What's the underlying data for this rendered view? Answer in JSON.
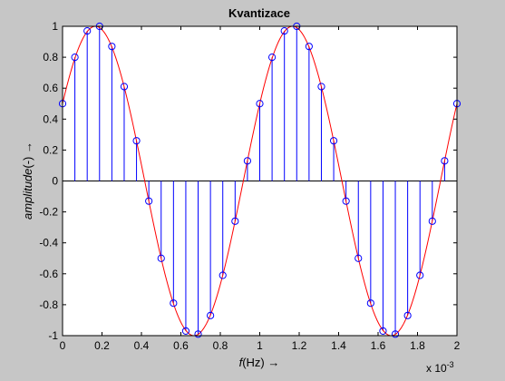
{
  "chart_data": {
    "type": "stem",
    "title": "Kvantizace",
    "xlabel": "f(Hz) →",
    "xlabel_parts": {
      "italic": "f",
      "rest": "(Hz) →"
    },
    "ylabel": "amplitude(-) →",
    "ylabel_parts": {
      "italic": "amplitude",
      "rest": "(-) →"
    },
    "x_multiplier": "x 10",
    "x_multiplier_exp": "-3",
    "xlim": [
      0,
      2
    ],
    "ylim": [
      -1,
      1
    ],
    "grid": false,
    "xticks": [
      0,
      0.2,
      0.4,
      0.6,
      0.8,
      1,
      1.2,
      1.4,
      1.6,
      1.8,
      2
    ],
    "xtick_labels": [
      "0",
      "0.2",
      "0.4",
      "0.6",
      "0.8",
      "1",
      "1.2",
      "1.4",
      "1.6",
      "1.8",
      "2"
    ],
    "yticks": [
      -1,
      -0.8,
      -0.6,
      -0.4,
      -0.2,
      0,
      0.2,
      0.4,
      0.6,
      0.8,
      1
    ],
    "ytick_labels": [
      "-1",
      "-0.8",
      "-0.6",
      "-0.4",
      "-0.2",
      "0",
      "0.2",
      "0.4",
      "0.6",
      "0.8",
      "1"
    ],
    "series": [
      {
        "kind": "line",
        "color": "#ff0000",
        "amplitude": 1,
        "frequency": 1,
        "phase_deg": 30,
        "x_range": [
          0,
          2
        ]
      },
      {
        "kind": "stem",
        "color": "#0000ff",
        "marker": "circle",
        "x": [
          0,
          0.0625,
          0.125,
          0.1875,
          0.25,
          0.3125,
          0.375,
          0.4375,
          0.5,
          0.5625,
          0.625,
          0.6875,
          0.75,
          0.8125,
          0.875,
          0.9375,
          1,
          1.0625,
          1.125,
          1.1875,
          1.25,
          1.3125,
          1.375,
          1.4375,
          1.5,
          1.5625,
          1.625,
          1.6875,
          1.75,
          1.8125,
          1.875,
          1.9375,
          2
        ],
        "y": [
          0.5,
          0.8,
          0.97,
          1.0,
          0.87,
          0.61,
          0.26,
          -0.13,
          -0.5,
          -0.79,
          -0.97,
          -0.99,
          -0.87,
          -0.61,
          -0.26,
          0.13,
          0.5,
          0.8,
          0.97,
          1.0,
          0.87,
          0.61,
          0.26,
          -0.13,
          -0.5,
          -0.79,
          -0.97,
          -0.99,
          -0.87,
          -0.61,
          -0.26,
          0.13,
          0.5
        ]
      }
    ]
  }
}
